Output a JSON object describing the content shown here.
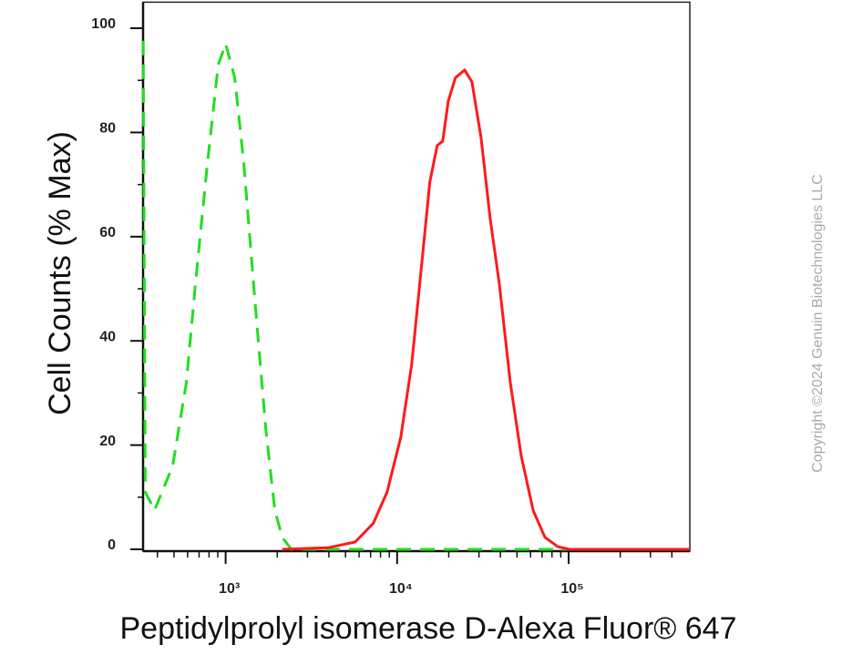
{
  "chart_data": {
    "type": "line",
    "xlabel": "Peptidylprolyl isomerase D-Alexa Fluor® 647",
    "ylabel": "Cell Counts (% Max)",
    "watermark": "Copyright ©2024 Genuin Biotechnologies LLC",
    "xscale": "log",
    "xlim": [
      330,
      509000
    ],
    "ylim": [
      0,
      105
    ],
    "xticks": [
      {
        "value": 1000,
        "label": "10³"
      },
      {
        "value": 10000,
        "label": "10⁴"
      },
      {
        "value": 100000,
        "label": "10⁵"
      }
    ],
    "xminorticks": [
      400,
      500,
      600,
      700,
      800,
      900,
      2000,
      3000,
      4000,
      5000,
      6000,
      7000,
      8000,
      9000,
      20000,
      30000,
      40000,
      50000,
      60000,
      70000,
      80000,
      90000,
      200000,
      300000,
      400000
    ],
    "yticks": [
      0,
      20,
      40,
      60,
      80,
      100
    ],
    "yminorticks": [
      10,
      30,
      50,
      70,
      90
    ],
    "series": [
      {
        "color": "#22dd22",
        "dashed": true,
        "x": [
          331,
          340,
          385,
          491,
          590,
          667,
          783,
          906,
          1000,
          1130,
          1277,
          1479,
          1714,
          1936,
          2138,
          2415,
          121600
        ],
        "values": [
          97.6,
          11,
          7.5,
          16,
          32,
          51,
          74,
          93,
          97,
          90.5,
          74,
          48,
          23,
          7.5,
          2.3,
          0,
          0
        ]
      },
      {
        "color": "#ff1a1a",
        "dashed": false,
        "x": [
          2138,
          3945,
          5690,
          7270,
          8740,
          10500,
          12160,
          13740,
          15520,
          17130,
          18440,
          19860,
          21880,
          24760,
          27310,
          30840,
          34880,
          39430,
          45700,
          52870,
          62070,
          72780,
          86340,
          101100,
          509000
        ],
        "values": [
          0,
          0.3,
          1.4,
          5,
          11,
          21.5,
          35.5,
          53,
          70.5,
          77.5,
          78.3,
          86,
          90.5,
          92,
          89.7,
          79,
          63.5,
          51,
          32,
          18,
          7.5,
          2.3,
          0.5,
          0,
          0
        ]
      }
    ]
  }
}
